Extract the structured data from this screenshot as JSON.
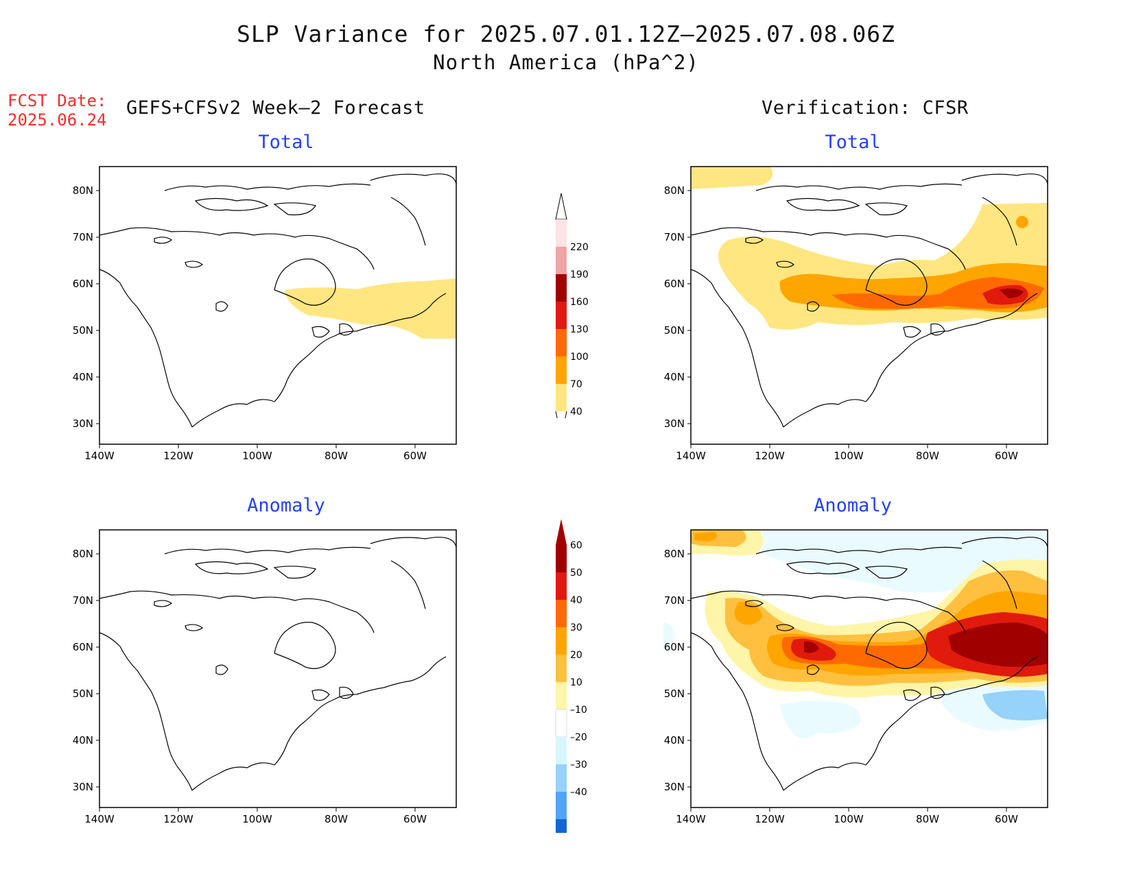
{
  "title": {
    "line1": "SLP Variance for 2025.07.01.12Z–2025.07.08.06Z",
    "line2": "North America (hPa^2)"
  },
  "fcst": {
    "label": "FCST Date:",
    "date": "2025.06.24"
  },
  "columns": {
    "left": "GEFS+CFSv2 Week–2 Forecast",
    "right": "Verification: CFSR"
  },
  "panels": {
    "fcst_total": "Total",
    "verif_total": "Total",
    "fcst_anomaly": "Anomaly",
    "verif_anomaly": "Anomaly"
  },
  "axes": {
    "lat_labels": [
      "80N",
      "70N",
      "60N",
      "50N",
      "40N",
      "30N"
    ],
    "lon_labels": [
      "140W",
      "120W",
      "100W",
      "80W",
      "60W"
    ]
  },
  "colorbar_total": {
    "labels": [
      "220",
      "190",
      "160",
      "130",
      "100",
      "70",
      "40"
    ],
    "colors": [
      "#fde3e3",
      "#f1a3a5",
      "#a00000",
      "#e01a0c",
      "#ff6a00",
      "#ffa500",
      "#ffe680"
    ]
  },
  "colorbar_anomaly": {
    "labels": [
      "60",
      "50",
      "40",
      "30",
      "20",
      "10",
      "–10",
      "–20",
      "–30",
      "–40"
    ],
    "colors": [
      "#a00000",
      "#e01a0c",
      "#ff6a00",
      "#ffa500",
      "#ffc040",
      "#fff5a8",
      "#ffffff",
      "#d8f6ff",
      "#96d2fa",
      "#50a5f5",
      "#1464d2"
    ]
  }
}
